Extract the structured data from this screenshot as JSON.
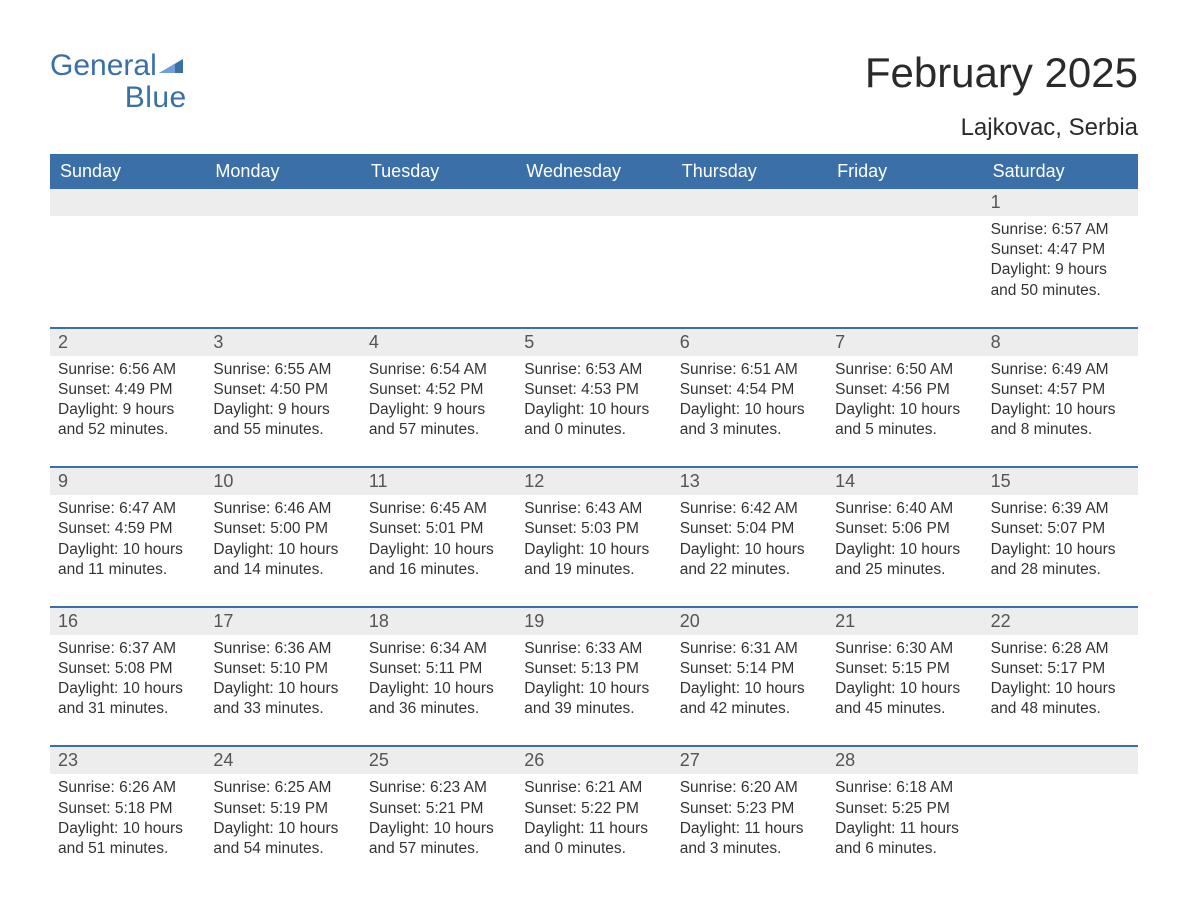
{
  "brand": {
    "word1": "General",
    "word2": "Blue",
    "logo_bg_color": "#3a6fa8",
    "text_color": "#3a6fa8"
  },
  "title": "February 2025",
  "location": "Lajkovac, Serbia",
  "colors": {
    "header_bg": "#3a6fa8",
    "header_text": "#ffffff",
    "daynum_bg": "#ededed",
    "week_divider": "#3a6fa8",
    "body_text": "#333333",
    "page_bg": "#ffffff"
  },
  "weekdays": [
    "Sunday",
    "Monday",
    "Tuesday",
    "Wednesday",
    "Thursday",
    "Friday",
    "Saturday"
  ],
  "labels": {
    "sunrise_prefix": "Sunrise: ",
    "sunset_prefix": "Sunset: ",
    "daylight_prefix": "Daylight: ",
    "hours_word": " hours",
    "and_word": "and ",
    "minutes_suffix": " minutes."
  },
  "weeks": [
    {
      "days": [
        null,
        null,
        null,
        null,
        null,
        null,
        {
          "n": "1",
          "sunrise": "6:57 AM",
          "sunset": "4:47 PM",
          "dl_h": "9",
          "dl_m": "50"
        }
      ]
    },
    {
      "days": [
        {
          "n": "2",
          "sunrise": "6:56 AM",
          "sunset": "4:49 PM",
          "dl_h": "9",
          "dl_m": "52"
        },
        {
          "n": "3",
          "sunrise": "6:55 AM",
          "sunset": "4:50 PM",
          "dl_h": "9",
          "dl_m": "55"
        },
        {
          "n": "4",
          "sunrise": "6:54 AM",
          "sunset": "4:52 PM",
          "dl_h": "9",
          "dl_m": "57"
        },
        {
          "n": "5",
          "sunrise": "6:53 AM",
          "sunset": "4:53 PM",
          "dl_h": "10",
          "dl_m": "0"
        },
        {
          "n": "6",
          "sunrise": "6:51 AM",
          "sunset": "4:54 PM",
          "dl_h": "10",
          "dl_m": "3"
        },
        {
          "n": "7",
          "sunrise": "6:50 AM",
          "sunset": "4:56 PM",
          "dl_h": "10",
          "dl_m": "5"
        },
        {
          "n": "8",
          "sunrise": "6:49 AM",
          "sunset": "4:57 PM",
          "dl_h": "10",
          "dl_m": "8"
        }
      ]
    },
    {
      "days": [
        {
          "n": "9",
          "sunrise": "6:47 AM",
          "sunset": "4:59 PM",
          "dl_h": "10",
          "dl_m": "11"
        },
        {
          "n": "10",
          "sunrise": "6:46 AM",
          "sunset": "5:00 PM",
          "dl_h": "10",
          "dl_m": "14"
        },
        {
          "n": "11",
          "sunrise": "6:45 AM",
          "sunset": "5:01 PM",
          "dl_h": "10",
          "dl_m": "16"
        },
        {
          "n": "12",
          "sunrise": "6:43 AM",
          "sunset": "5:03 PM",
          "dl_h": "10",
          "dl_m": "19"
        },
        {
          "n": "13",
          "sunrise": "6:42 AM",
          "sunset": "5:04 PM",
          "dl_h": "10",
          "dl_m": "22"
        },
        {
          "n": "14",
          "sunrise": "6:40 AM",
          "sunset": "5:06 PM",
          "dl_h": "10",
          "dl_m": "25"
        },
        {
          "n": "15",
          "sunrise": "6:39 AM",
          "sunset": "5:07 PM",
          "dl_h": "10",
          "dl_m": "28"
        }
      ]
    },
    {
      "days": [
        {
          "n": "16",
          "sunrise": "6:37 AM",
          "sunset": "5:08 PM",
          "dl_h": "10",
          "dl_m": "31"
        },
        {
          "n": "17",
          "sunrise": "6:36 AM",
          "sunset": "5:10 PM",
          "dl_h": "10",
          "dl_m": "33"
        },
        {
          "n": "18",
          "sunrise": "6:34 AM",
          "sunset": "5:11 PM",
          "dl_h": "10",
          "dl_m": "36"
        },
        {
          "n": "19",
          "sunrise": "6:33 AM",
          "sunset": "5:13 PM",
          "dl_h": "10",
          "dl_m": "39"
        },
        {
          "n": "20",
          "sunrise": "6:31 AM",
          "sunset": "5:14 PM",
          "dl_h": "10",
          "dl_m": "42"
        },
        {
          "n": "21",
          "sunrise": "6:30 AM",
          "sunset": "5:15 PM",
          "dl_h": "10",
          "dl_m": "45"
        },
        {
          "n": "22",
          "sunrise": "6:28 AM",
          "sunset": "5:17 PM",
          "dl_h": "10",
          "dl_m": "48"
        }
      ]
    },
    {
      "days": [
        {
          "n": "23",
          "sunrise": "6:26 AM",
          "sunset": "5:18 PM",
          "dl_h": "10",
          "dl_m": "51"
        },
        {
          "n": "24",
          "sunrise": "6:25 AM",
          "sunset": "5:19 PM",
          "dl_h": "10",
          "dl_m": "54"
        },
        {
          "n": "25",
          "sunrise": "6:23 AM",
          "sunset": "5:21 PM",
          "dl_h": "10",
          "dl_m": "57"
        },
        {
          "n": "26",
          "sunrise": "6:21 AM",
          "sunset": "5:22 PM",
          "dl_h": "11",
          "dl_m": "0"
        },
        {
          "n": "27",
          "sunrise": "6:20 AM",
          "sunset": "5:23 PM",
          "dl_h": "11",
          "dl_m": "3"
        },
        {
          "n": "28",
          "sunrise": "6:18 AM",
          "sunset": "5:25 PM",
          "dl_h": "11",
          "dl_m": "6"
        },
        null
      ]
    }
  ]
}
